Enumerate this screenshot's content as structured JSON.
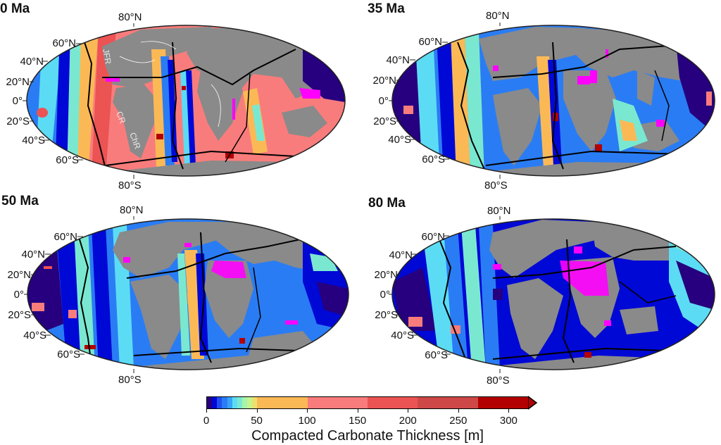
{
  "figure": {
    "panels": [
      {
        "id": "0ma",
        "title": "0 Ma",
        "top_label": "80°N",
        "bottom_label": "80°S",
        "lat_labels": [
          "60°N",
          "40°N",
          "20°N",
          "0°",
          "20°S",
          "40°S",
          "60°S"
        ],
        "annotations": [
          "JFR",
          "CR",
          "ChR"
        ]
      },
      {
        "id": "35ma",
        "title": "35 Ma",
        "top_label": "80°N",
        "bottom_label": "80°S",
        "lat_labels": [
          "60°N",
          "40°N",
          "20°N",
          "0°",
          "20°S",
          "40°S",
          "60°S"
        ],
        "annotations": []
      },
      {
        "id": "50ma",
        "title": "50 Ma",
        "top_label": "80°N",
        "bottom_label": "80°S",
        "lat_labels": [
          "60°N",
          "40°N",
          "20°N",
          "0°",
          "20°S",
          "40°S",
          "60°S"
        ],
        "annotations": []
      },
      {
        "id": "80ma",
        "title": "80 Ma",
        "top_label": "80°N",
        "bottom_label": "80°S",
        "lat_labels": [
          "60°N",
          "40°N",
          "20°N",
          "0°",
          "20°S",
          "40°S",
          "60°S"
        ],
        "annotations": []
      }
    ],
    "colorbar": {
      "label": "Compacted Carbonate Thickness [m]",
      "ticks": [
        "0",
        "50",
        "100",
        "150",
        "200",
        "250",
        "300"
      ],
      "range": [
        0,
        320
      ],
      "extend": "max",
      "segments": [
        {
          "from": 0,
          "to": 5,
          "color": "#26007f"
        },
        {
          "from": 5,
          "to": 10,
          "color": "#0008d6"
        },
        {
          "from": 10,
          "to": 15,
          "color": "#1f4ff0"
        },
        {
          "from": 15,
          "to": 20,
          "color": "#2a7cf4"
        },
        {
          "from": 20,
          "to": 25,
          "color": "#3aa2f6"
        },
        {
          "from": 25,
          "to": 30,
          "color": "#5cdcf4"
        },
        {
          "from": 30,
          "to": 35,
          "color": "#7ae8d0"
        },
        {
          "from": 35,
          "to": 40,
          "color": "#a6f5ac"
        },
        {
          "from": 40,
          "to": 45,
          "color": "#c8f48c"
        },
        {
          "from": 45,
          "to": 50,
          "color": "#ebe070"
        },
        {
          "from": 50,
          "to": 100,
          "color": "#fbb956"
        },
        {
          "from": 100,
          "to": 160,
          "color": "#f97c7c"
        },
        {
          "from": 160,
          "to": 210,
          "color": "#ec5353"
        },
        {
          "from": 210,
          "to": 270,
          "color": "#cf4848"
        },
        {
          "from": 270,
          "to": 320,
          "color": "#b30000"
        }
      ],
      "extra_colors": {
        "land": "#8a8a8a",
        "above_range": "#ff00ff"
      }
    }
  }
}
